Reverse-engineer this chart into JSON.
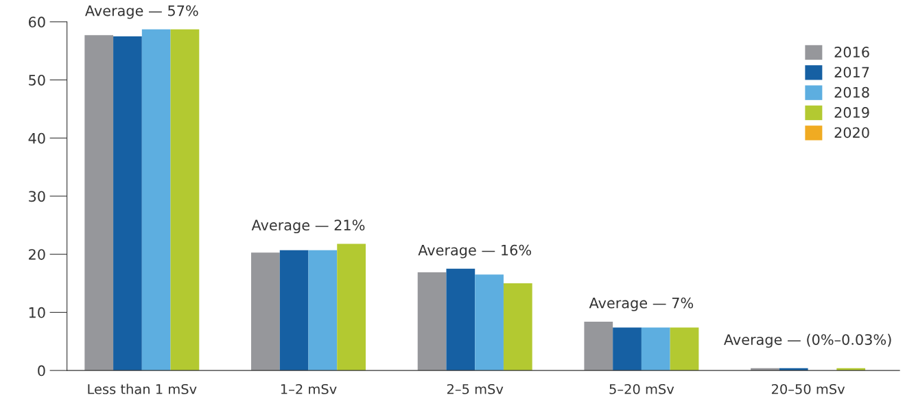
{
  "chart_data": {
    "type": "bar",
    "categories": [
      "Less than 1 mSv",
      "1–2 mSv",
      "2–5 mSv",
      "5–20 mSv",
      "20–50 mSv"
    ],
    "series": [
      {
        "name": "2016",
        "color": "#96979b",
        "values": [
          57.7,
          20.3,
          16.9,
          8.4,
          0.4
        ]
      },
      {
        "name": "2017",
        "color": "#1660a3",
        "values": [
          57.5,
          20.7,
          17.5,
          7.4,
          0.4
        ]
      },
      {
        "name": "2018",
        "color": "#5daee0",
        "values": [
          58.7,
          20.7,
          16.5,
          7.4,
          null
        ]
      },
      {
        "name": "2019",
        "color": "#b3c931",
        "values": [
          58.7,
          21.8,
          15.0,
          7.4,
          0.4
        ]
      },
      {
        "name": "2020",
        "color": "#f0ab22",
        "values": [
          null,
          null,
          null,
          null,
          null
        ]
      }
    ],
    "ylim": [
      0,
      60
    ],
    "yticks": [
      0,
      10,
      20,
      30,
      40,
      50,
      60
    ],
    "annotations": [
      "Average — 57%",
      "Average — 21%",
      "Average — 16%",
      "Average — 7%",
      "Average — (0%–0.03%)"
    ],
    "grid": false,
    "legend": "top right"
  }
}
